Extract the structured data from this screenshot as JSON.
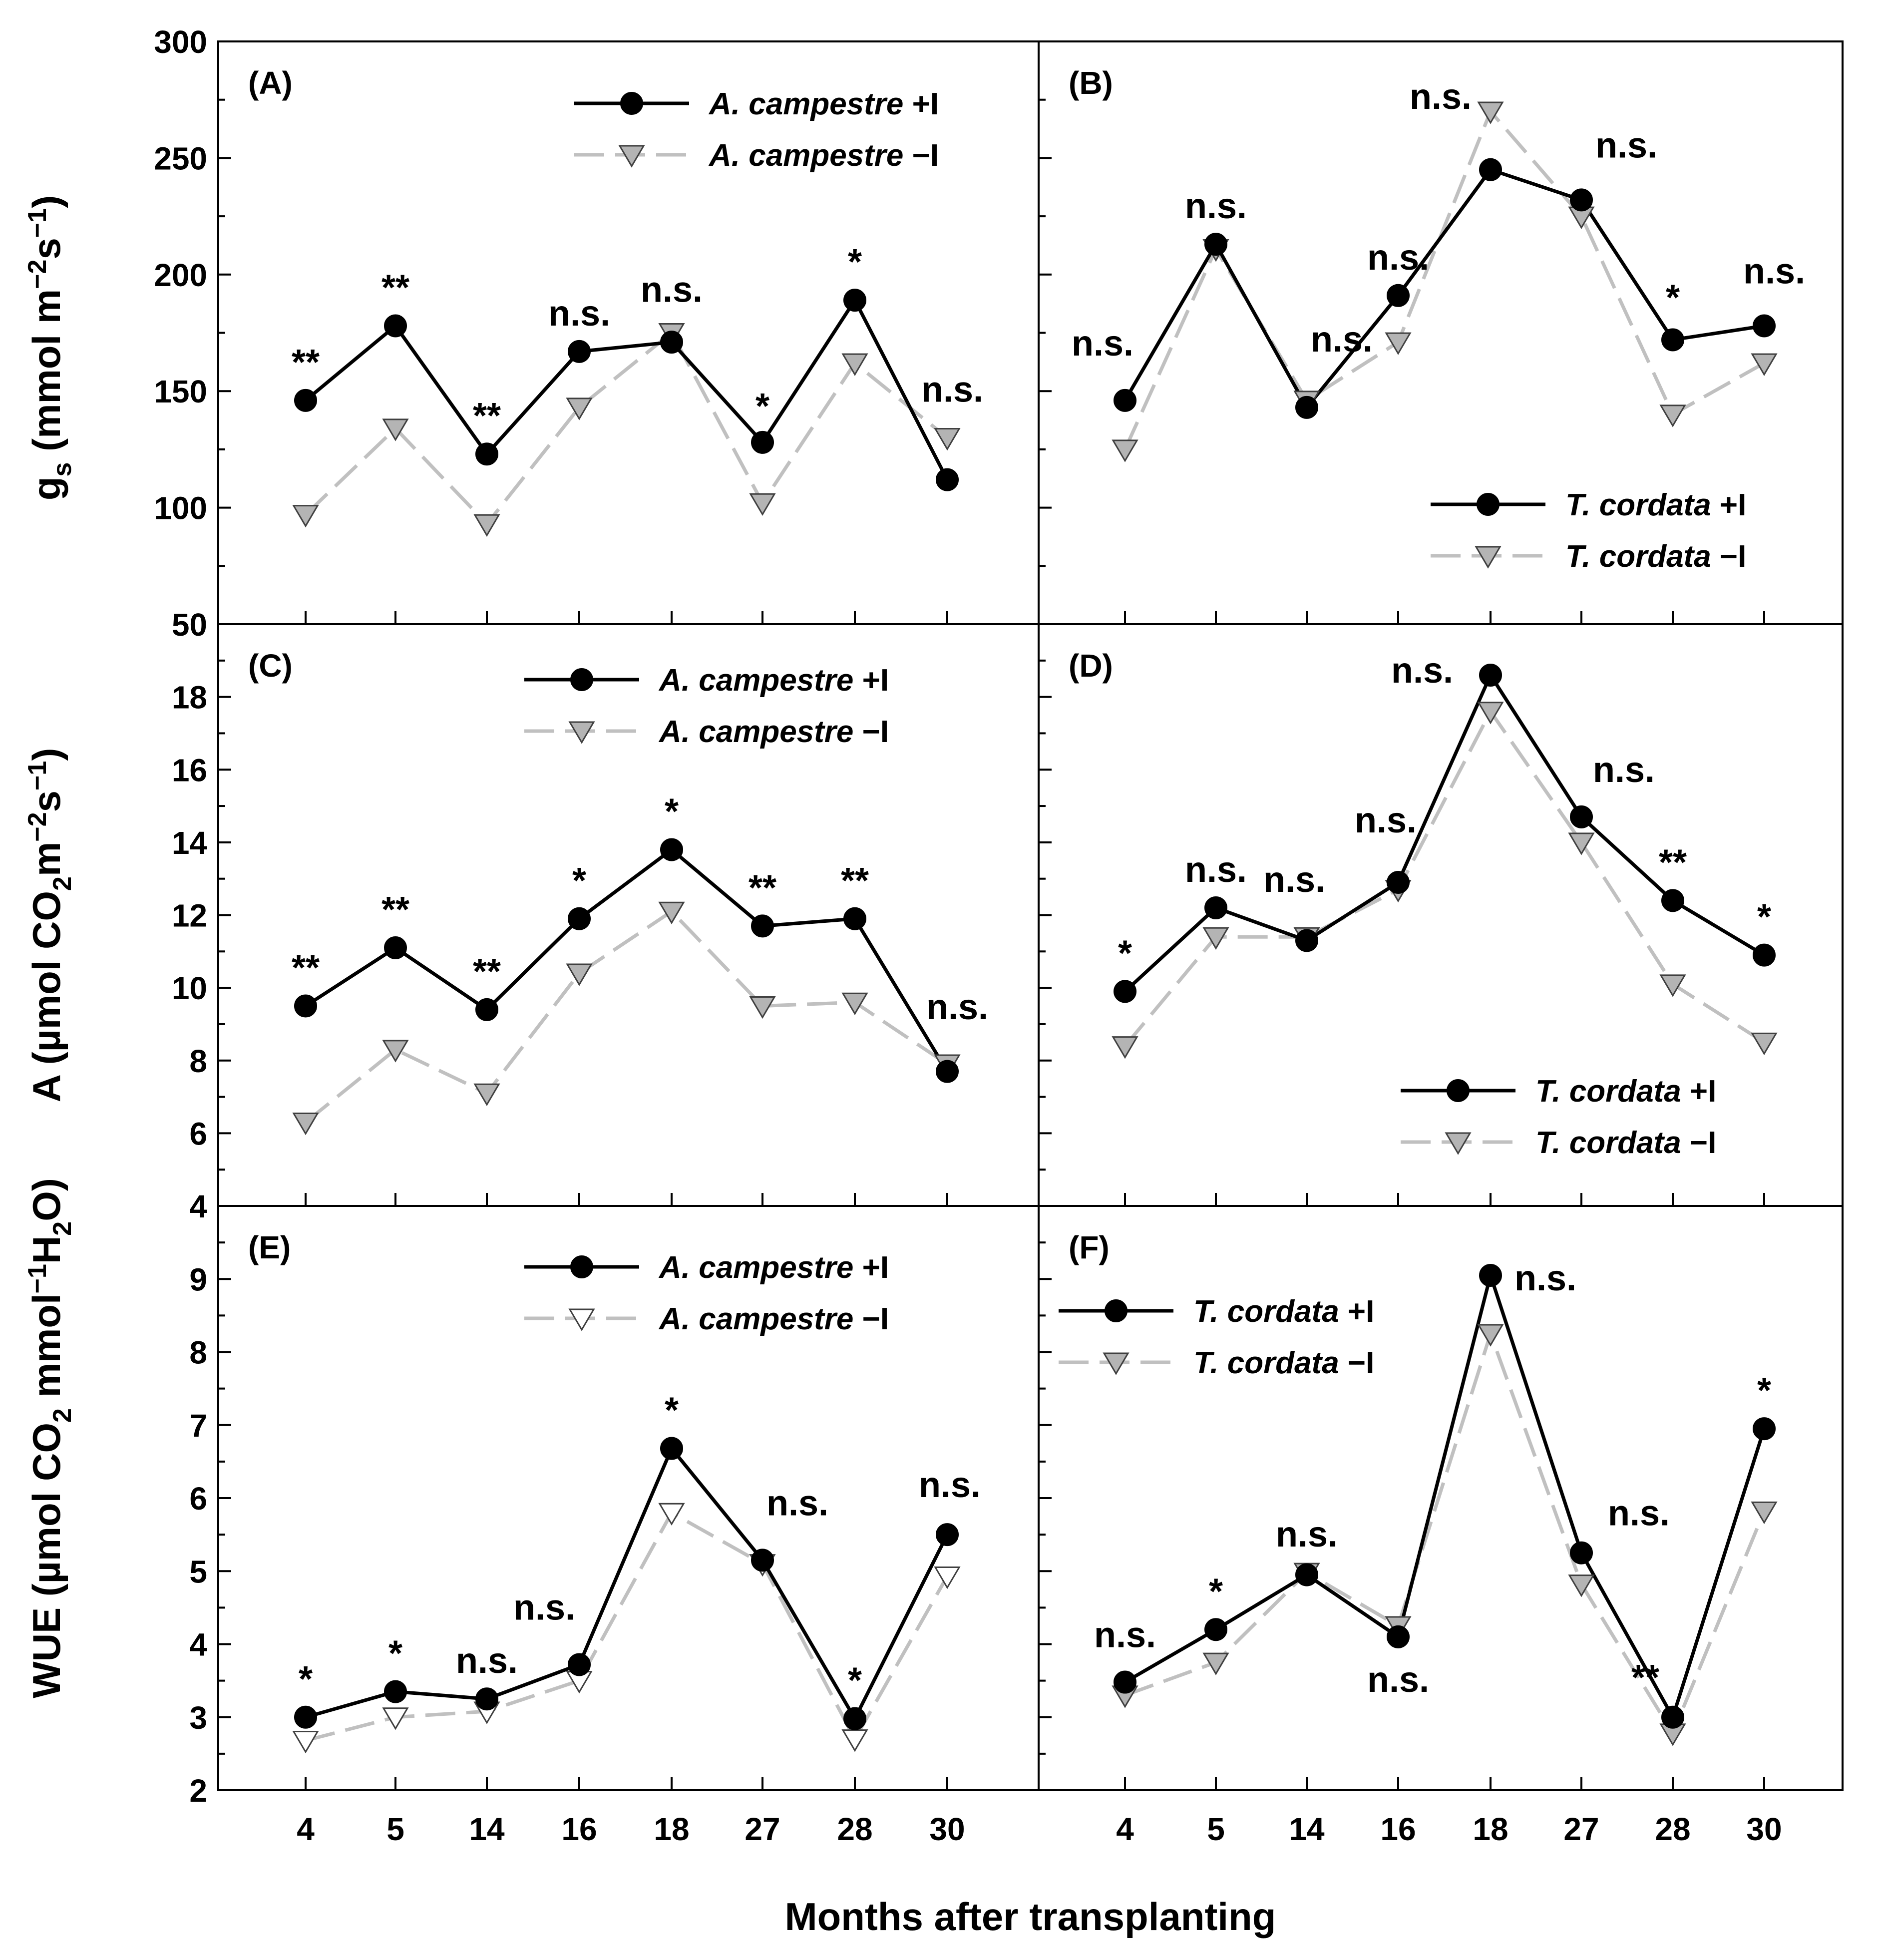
{
  "figure": {
    "xlabel": "Months after transplanting",
    "ylabels": {
      "gs": [
        "g",
        "s",
        " (mmol m",
        "−2",
        "s",
        "−1",
        ")"
      ],
      "a": [
        "A (µmol CO",
        "2",
        "m",
        "−2",
        "s",
        "−1",
        ")"
      ],
      "wue": [
        "WUE (µmol CO",
        "2",
        "  mmol",
        "−1",
        "H",
        "2",
        "O)"
      ]
    },
    "colors": {
      "irrigated": "#000000",
      "non_irrigated": "#c0c0c0",
      "marker_fill": "#b4b4b4"
    }
  },
  "chart_data": [
    {
      "type": "line",
      "panel": "(A)",
      "species": "A. campestre",
      "row": "gs",
      "col": 0,
      "categories": [
        "4",
        "5",
        "14",
        "16",
        "18",
        "27",
        "28",
        "30"
      ],
      "ylim": [
        50,
        300
      ],
      "yticks": [
        "50",
        "100",
        "150",
        "200",
        "250",
        "300"
      ],
      "series": [
        {
          "name": "+I",
          "values": [
            146,
            178,
            123,
            167,
            171,
            128,
            189,
            112
          ]
        },
        {
          "name": "−I",
          "values": [
            97,
            134,
            93,
            143,
            175,
            102,
            162,
            130
          ]
        }
      ],
      "significance": [
        "**",
        "**",
        "**",
        "n.s.",
        "n.s.",
        "*",
        "*",
        "n.s."
      ],
      "legend": {
        "position": "top-right",
        "entries": [
          "A. campestre",
          "A. campestre"
        ],
        "suffixes": [
          " +I",
          " −I"
        ]
      }
    },
    {
      "type": "line",
      "panel": "(B)",
      "species": "T. cordata",
      "row": "gs",
      "col": 1,
      "categories": [
        "4",
        "5",
        "14",
        "16",
        "18",
        "27",
        "28",
        "30"
      ],
      "ylim": [
        50,
        300
      ],
      "series": [
        {
          "name": "+I",
          "values": [
            146,
            213,
            143,
            191,
            245,
            232,
            172,
            178
          ]
        },
        {
          "name": "−I",
          "values": [
            125,
            211,
            146,
            171,
            270,
            225,
            140,
            162
          ]
        }
      ],
      "significance": [
        "n.s.",
        "n.s.",
        "n.s.",
        "n.s.",
        "n.s.",
        "n.s.",
        "*",
        "n.s."
      ],
      "legend": {
        "position": "bottom-right",
        "entries": [
          "T. cordata",
          "T. cordata"
        ],
        "suffixes": [
          " +I",
          " −I"
        ]
      }
    },
    {
      "type": "line",
      "panel": "(C)",
      "species": "A. campestre",
      "row": "a",
      "col": 0,
      "categories": [
        "4",
        "5",
        "14",
        "16",
        "18",
        "27",
        "28",
        "30"
      ],
      "ylim": [
        4,
        20
      ],
      "yticks": [
        "4",
        "6",
        "8",
        "10",
        "12",
        "14",
        "16",
        "18"
      ],
      "series": [
        {
          "name": "+I",
          "values": [
            9.5,
            11.1,
            9.4,
            11.9,
            13.8,
            11.7,
            11.9,
            7.7
          ]
        },
        {
          "name": "−I",
          "values": [
            6.3,
            8.3,
            7.1,
            10.4,
            12.1,
            9.5,
            9.6,
            7.9
          ]
        }
      ],
      "significance": [
        "**",
        "**",
        "**",
        "*",
        "*",
        "**",
        "**",
        "n.s."
      ],
      "legend": {
        "position": "top-right",
        "entries": [
          "A. campestre",
          "A. campestre"
        ],
        "suffixes": [
          " +I",
          " −I"
        ]
      }
    },
    {
      "type": "line",
      "panel": "(D)",
      "species": "T. cordata",
      "row": "a",
      "col": 1,
      "categories": [
        "4",
        "5",
        "14",
        "16",
        "18",
        "27",
        "28",
        "30"
      ],
      "ylim": [
        4,
        20
      ],
      "series": [
        {
          "name": "+I",
          "values": [
            9.9,
            12.2,
            11.3,
            12.9,
            18.6,
            14.7,
            12.4,
            10.9
          ]
        },
        {
          "name": "−I",
          "values": [
            8.4,
            11.4,
            11.4,
            12.7,
            17.6,
            14.0,
            10.1,
            8.5
          ]
        }
      ],
      "significance": [
        "*",
        "n.s.",
        "n.s.",
        "n.s.",
        "n.s.",
        "n.s.",
        "**",
        "*"
      ],
      "legend": {
        "position": "bottom-right",
        "entries": [
          "T. cordata",
          "T. cordata"
        ],
        "suffixes": [
          " +I",
          " −I"
        ]
      }
    },
    {
      "type": "line",
      "panel": "(E)",
      "species": "A. campestre",
      "row": "wue",
      "col": 0,
      "categories": [
        "4",
        "5",
        "14",
        "16",
        "18",
        "27",
        "28",
        "30"
      ],
      "ylim": [
        2,
        10
      ],
      "yticks": [
        "2",
        "3",
        "4",
        "5",
        "6",
        "7",
        "8",
        "9"
      ],
      "series": [
        {
          "name": "+I",
          "values": [
            3.0,
            3.35,
            3.25,
            3.72,
            6.68,
            5.15,
            2.98,
            5.5
          ]
        },
        {
          "name": "−I",
          "values": [
            2.68,
            3.0,
            3.08,
            3.5,
            5.8,
            5.1,
            2.7,
            4.93
          ]
        }
      ],
      "significance": [
        "*",
        "*",
        "n.s.",
        "n.s.",
        "*",
        "n.s.",
        "*",
        "n.s."
      ],
      "legend": {
        "position": "top-right",
        "entries": [
          "A. campestre",
          "A. campestre"
        ],
        "suffixes": [
          " +I",
          " −I"
        ]
      }
    },
    {
      "type": "line",
      "panel": "(F)",
      "species": "T. cordata",
      "row": "wue",
      "col": 1,
      "categories": [
        "4",
        "5",
        "14",
        "16",
        "18",
        "27",
        "28",
        "30"
      ],
      "ylim": [
        2,
        10
      ],
      "series": [
        {
          "name": "+I",
          "values": [
            3.48,
            4.2,
            4.95,
            4.1,
            9.05,
            5.25,
            3.0,
            6.95
          ]
        },
        {
          "name": "−I",
          "values": [
            3.3,
            3.75,
            4.98,
            4.25,
            8.25,
            4.82,
            2.78,
            5.82
          ]
        }
      ],
      "significance": [
        "n.s.",
        "*",
        "n.s.",
        "n.s.",
        "n.s.",
        "n.s.",
        "**",
        "*"
      ],
      "legend": {
        "position": "top-left",
        "entries": [
          "T. cordata",
          "T. cordata"
        ],
        "suffixes": [
          " +I",
          " −I"
        ]
      }
    }
  ]
}
